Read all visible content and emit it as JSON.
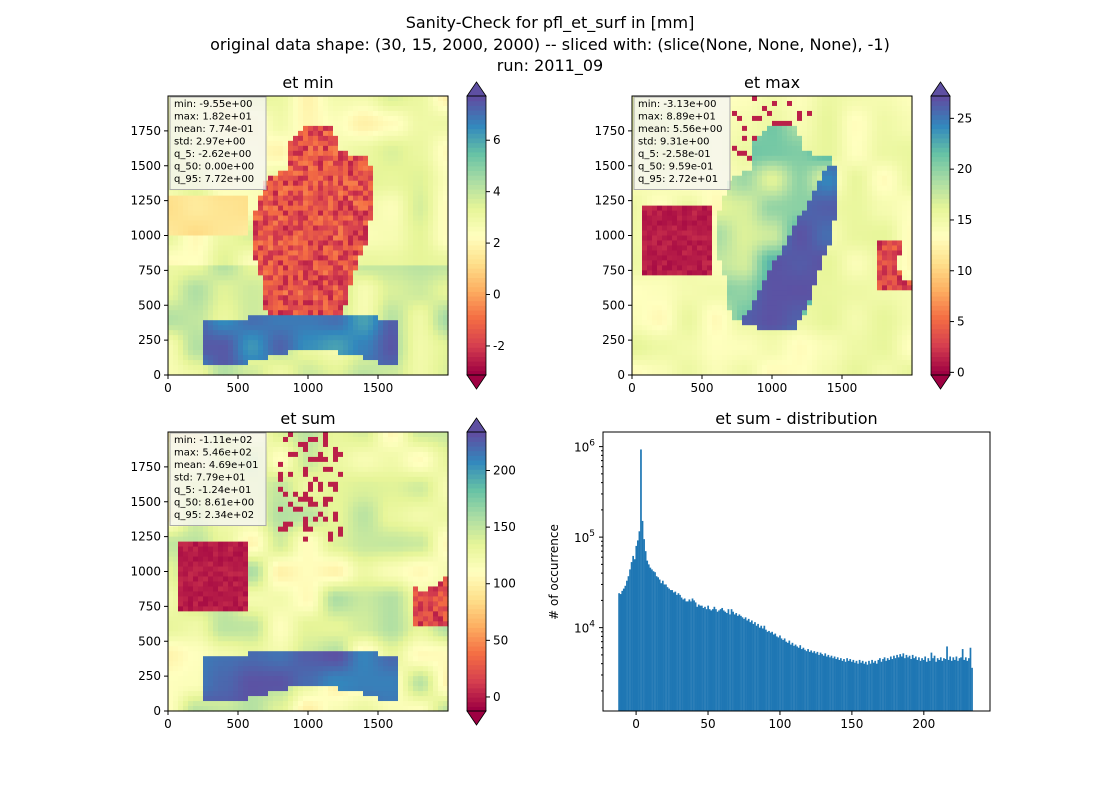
{
  "figure": {
    "title_lines": [
      "Sanity-Check for pfl_et_surf in [mm]",
      "original data shape: (30, 15, 2000, 2000) -- sliced with: (slice(None, None, None), -1)",
      "run: 2011_09"
    ]
  },
  "chart_data": [
    {
      "type": "heatmap",
      "title": "et min",
      "xlim": [
        0,
        2000
      ],
      "ylim": [
        0,
        2000
      ],
      "x_ticks": [
        "0",
        "500",
        "1000",
        "1500"
      ],
      "y_ticks": [
        "0",
        "250",
        "500",
        "750",
        "1000",
        "1250",
        "1500",
        "1750"
      ],
      "colorbar": {
        "cmap": "Spectral",
        "range": [
          -3.13,
          7.72
        ],
        "ticks": [
          "-2",
          "0",
          "2",
          "4",
          "6"
        ],
        "extend": "both"
      },
      "stats": [
        "min: -9.55e+00",
        "max: 1.82e+01",
        "mean: 7.74e-01",
        "std: 2.97e+00",
        "q_5: -2.62e+00",
        "q_50: 0.00e+00",
        "q_95: 7.72e+00"
      ]
    },
    {
      "type": "heatmap",
      "title": "et max",
      "xlim": [
        0,
        2000
      ],
      "ylim": [
        0,
        2000
      ],
      "x_ticks": [
        "0",
        "500",
        "1000",
        "1500"
      ],
      "y_ticks": [
        "0",
        "250",
        "500",
        "750",
        "1000",
        "1250",
        "1500",
        "1750"
      ],
      "colorbar": {
        "cmap": "Spectral",
        "range": [
          -0.26,
          27.2
        ],
        "ticks": [
          "0",
          "5",
          "10",
          "15",
          "20",
          "25"
        ],
        "extend": "both"
      },
      "stats": [
        "min: -3.13e+00",
        "max: 8.89e+01",
        "mean: 5.56e+00",
        "std: 9.31e+00",
        "q_5: -2.58e-01",
        "q_50: 9.59e-01",
        "q_95: 2.72e+01"
      ]
    },
    {
      "type": "heatmap",
      "title": "et sum",
      "xlim": [
        0,
        2000
      ],
      "ylim": [
        0,
        2000
      ],
      "x_ticks": [
        "0",
        "500",
        "1000",
        "1500"
      ],
      "y_ticks": [
        "0",
        "250",
        "500",
        "750",
        "1000",
        "1250",
        "1500",
        "1750"
      ],
      "colorbar": {
        "cmap": "Spectral",
        "range": [
          -12.4,
          234
        ],
        "ticks": [
          "0",
          "50",
          "100",
          "150",
          "200"
        ],
        "extend": "both"
      },
      "stats": [
        "min: -1.11e+02",
        "max: 5.46e+02",
        "mean: 4.69e+01",
        "std: 7.79e+01",
        "q_5: -1.24e+01",
        "q_50: 8.61e+00",
        "q_95: 2.34e+02"
      ]
    },
    {
      "type": "bar",
      "title": "et sum - distribution",
      "ylabel": "# of occurrence",
      "xlabel": "",
      "yscale": "log",
      "x_ticks": [
        "0",
        "50",
        "100",
        "150",
        "200"
      ],
      "y_ticks": [
        "10^4",
        "10^5",
        "10^6"
      ],
      "xlim": [
        -12.4,
        234
      ],
      "bin_range": [
        -12.4,
        234
      ],
      "color": "#1f77b4",
      "values": [
        24000,
        23500,
        25500,
        27000,
        29000,
        33000,
        37000,
        44000,
        53000,
        62000,
        57000,
        80000,
        92000,
        116000,
        930000,
        151000,
        95000,
        70000,
        55000,
        50000,
        46000,
        44000,
        42000,
        41000,
        37000,
        36000,
        34000,
        31000,
        33000,
        30000,
        30000,
        28000,
        27000,
        26000,
        26000,
        24500,
        25000,
        23000,
        24000,
        23000,
        21500,
        20500,
        21000,
        19500,
        19500,
        20500,
        19500,
        21000,
        20000,
        19000,
        17000,
        18000,
        17500,
        17500,
        16500,
        17000,
        16000,
        17500,
        16000,
        15500,
        16000,
        17000,
        16000,
        15000,
        15500,
        16000,
        16500,
        15500,
        15000,
        14500,
        16000,
        14000,
        16000,
        15000,
        14000,
        14500,
        13500,
        14000,
        13500,
        13000,
        12500,
        13000,
        12000,
        12500,
        11500,
        12000,
        11000,
        11500,
        10500,
        11000,
        10000,
        10500,
        9800,
        10500,
        9500,
        9000,
        9200,
        8800,
        9000,
        8400,
        8600,
        8000,
        7800,
        8200,
        7600,
        7300,
        7600,
        7000,
        6800,
        7200,
        6500,
        6800,
        6300,
        6500,
        6200,
        6000,
        6400,
        5800,
        6000,
        5700,
        5500,
        5800,
        5400,
        5600,
        5300,
        5500,
        5200,
        5400,
        5000,
        5300,
        5100,
        4900,
        5200,
        4800,
        5000,
        4700,
        4900,
        4600,
        4800,
        4500,
        4700,
        4400,
        4600,
        4300,
        4500,
        4200,
        4600,
        4300,
        4500,
        4200,
        4400,
        4100,
        4300,
        4000,
        4400,
        4100,
        4300,
        4000,
        4200,
        3900,
        4300,
        4000,
        4400,
        4100,
        4300,
        4000,
        4400,
        4600,
        4200,
        4500,
        4700,
        4300,
        4600,
        4400,
        4800,
        4500,
        4900,
        4600,
        5000,
        4700,
        5100,
        4800,
        5200,
        4600,
        5000,
        4700,
        4900,
        4500,
        5000,
        4600,
        4800,
        4400,
        4700,
        4300,
        4600,
        4400,
        4800,
        4200,
        4600,
        4300,
        5300,
        4600,
        4900,
        4200,
        4600,
        4400,
        4700,
        4300,
        4600,
        4500,
        6200,
        4400,
        4800,
        4300,
        4700,
        4400,
        4800,
        4300,
        4600,
        4700,
        5800,
        4400,
        4700,
        4300,
        4600,
        6000,
        3600
      ]
    }
  ]
}
